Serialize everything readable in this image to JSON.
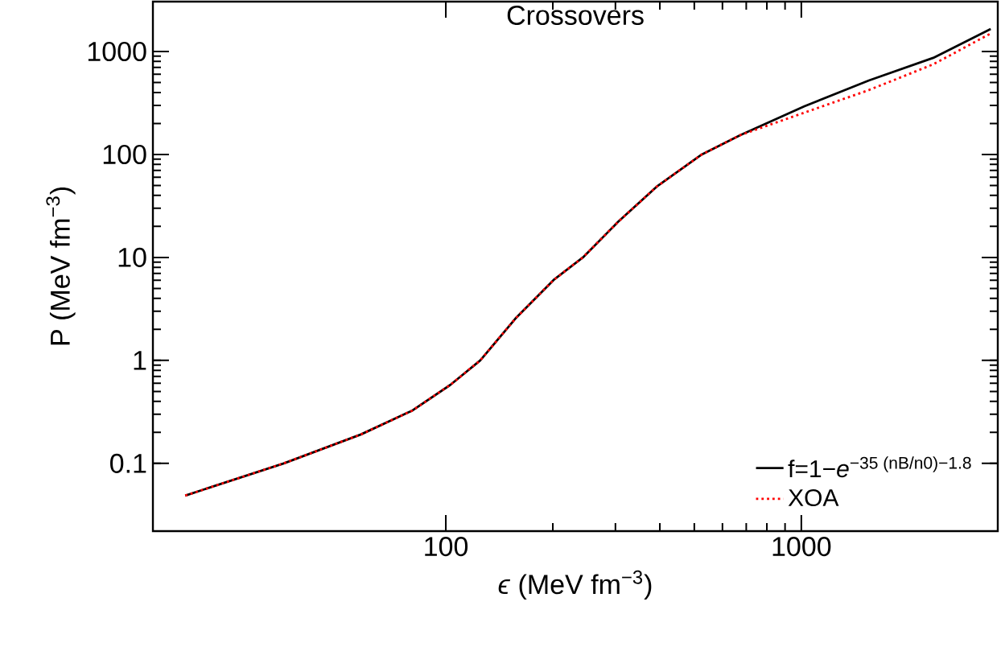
{
  "chart_data": {
    "type": "line",
    "title": "Crossovers",
    "xlabel": "*ϵ* (MeV fm$^{−3}$)",
    "ylabel": "P (MeV fm$^{−3}$)",
    "log": "xy",
    "xlim": [
      15,
      3570
    ],
    "ylim": [
      0.022,
      3050
    ],
    "xticks": [
      100,
      1000
    ],
    "yticks": [
      0.1,
      1,
      10,
      100,
      1000
    ],
    "legend": "bottom right",
    "grid": false,
    "series": [
      {
        "name": "f=1−*e*$^{−35 (nB/n0)−1.8}$",
        "color": "#000000",
        "line_style": "solid",
        "x": [
          18.5,
          35,
          57.7,
          80.5,
          103,
          125,
          157,
          201,
          243,
          305,
          392,
          525,
          673,
          1021,
          1549,
          2350,
          3410
        ],
        "values": [
          0.0487,
          0.1,
          0.191,
          0.326,
          0.579,
          1,
          2.55,
          6.04,
          10,
          22.1,
          48.7,
          100,
          154,
          294,
          523,
          867,
          1656
        ]
      },
      {
        "name": "XOA",
        "color": "#ff0000",
        "line_style": "dotted",
        "x": [
          18.5,
          35,
          57.7,
          80.5,
          103,
          125,
          157,
          201,
          243,
          305,
          392,
          525,
          673,
          1021,
          1549,
          2350,
          3410
        ],
        "values": [
          0.0487,
          0.1,
          0.191,
          0.326,
          0.579,
          1,
          2.55,
          6.04,
          10,
          22.1,
          48.7,
          100,
          154,
          255,
          422,
          750,
          1496
        ]
      }
    ]
  }
}
